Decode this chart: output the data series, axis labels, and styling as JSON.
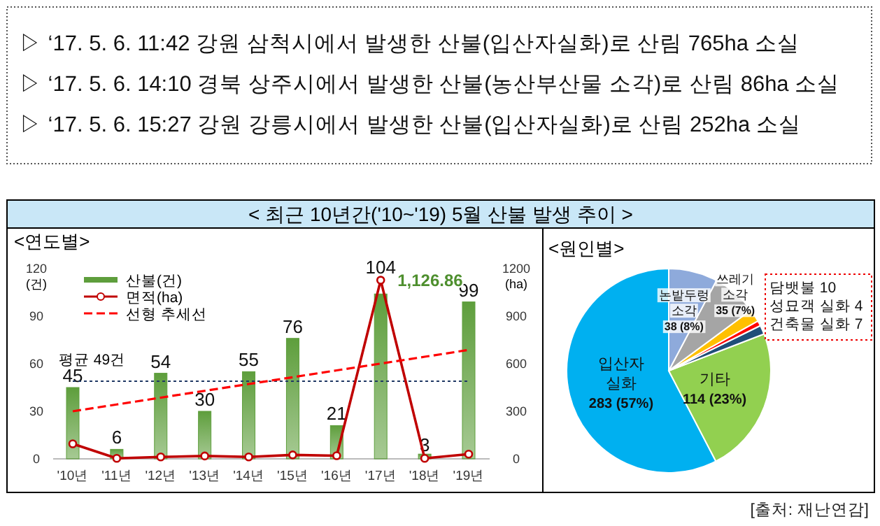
{
  "chart_data": [
    {
      "type": "bar",
      "title": "<연도별>",
      "categories": [
        "'10년",
        "'11년",
        "'12년",
        "'13년",
        "'14년",
        "'15년",
        "'16년",
        "'17년",
        "'18년",
        "'19년"
      ],
      "series": [
        {
          "name": "산불(건)",
          "type": "bar",
          "color": "#5e9e3c",
          "values": [
            45,
            6,
            54,
            30,
            55,
            76,
            21,
            104,
            3,
            99
          ],
          "data_labels": true
        },
        {
          "name": "면적(ha)",
          "type": "line",
          "axis": "y2",
          "color": "#c00000",
          "marker": "circle",
          "values": [
            95,
            3,
            12,
            18,
            12,
            25,
            20,
            1126.86,
            3,
            30
          ],
          "value_labels": [
            null,
            null,
            null,
            null,
            null,
            null,
            null,
            "1,126.86",
            null,
            null
          ]
        },
        {
          "name": "선형 추세선",
          "type": "line",
          "color": "#ff0000",
          "line_style": "dashed",
          "marker": "none",
          "values": [
            30,
            34.3,
            38.6,
            42.9,
            47.2,
            51.5,
            55.8,
            60.1,
            64.4,
            68.7
          ]
        }
      ],
      "ylabel": "(건)",
      "y2label": "(ha)",
      "ylim": [
        0,
        120
      ],
      "yticks": [
        0,
        30,
        60,
        90,
        120
      ],
      "y2lim": [
        0,
        1200
      ],
      "y2ticks": [
        0,
        300,
        600,
        900,
        1200
      ],
      "ref_lines": [
        {
          "axis": "y",
          "value": 49,
          "label": "평균 49건",
          "color": "#1f3864",
          "line_style": "dotted"
        }
      ],
      "legend": "top left",
      "grid": false,
      "annotations": [
        "▷ ‘17. 5. 6. 11:42  강원  삼척시에서  발생한  산불(입산자실화)로  산림  765ha  소실",
        "▷ ‘17. 5. 6. 14:10  경북  상주시에서  발생한  산불(농산부산물 소각)로  산림  86ha  소실",
        "▷ ‘17. 5. 6. 15:27  강원  강릉시에서  발생한  산불(입산자실화)로  산림  252ha  소실",
        "< 최근 10년간('10~'19) 5월 산불 발생 추이 >"
      ]
    },
    {
      "type": "pie",
      "title": "<원인별>",
      "categories": [
        "논밭두렁 소각",
        "쓰레기 소각",
        "담뱃불",
        "성묘객 실화",
        "건축물 실화",
        "기타",
        "입산자 실화"
      ],
      "values": [
        38,
        35,
        10,
        4,
        7,
        114,
        283
      ],
      "colors": [
        "#8eaadb",
        "#a5a5a5",
        "#ffc000",
        "#ff0000",
        "#1f4e79",
        "#92d050",
        "#00b0f0"
      ],
      "value_labels": [
        "38 (8%)",
        "35 (7%)",
        "10",
        "4",
        "7",
        "114 (23%)",
        "283 (57%)"
      ],
      "annotations": [
        "[출처: 재난연감]"
      ]
    }
  ]
}
